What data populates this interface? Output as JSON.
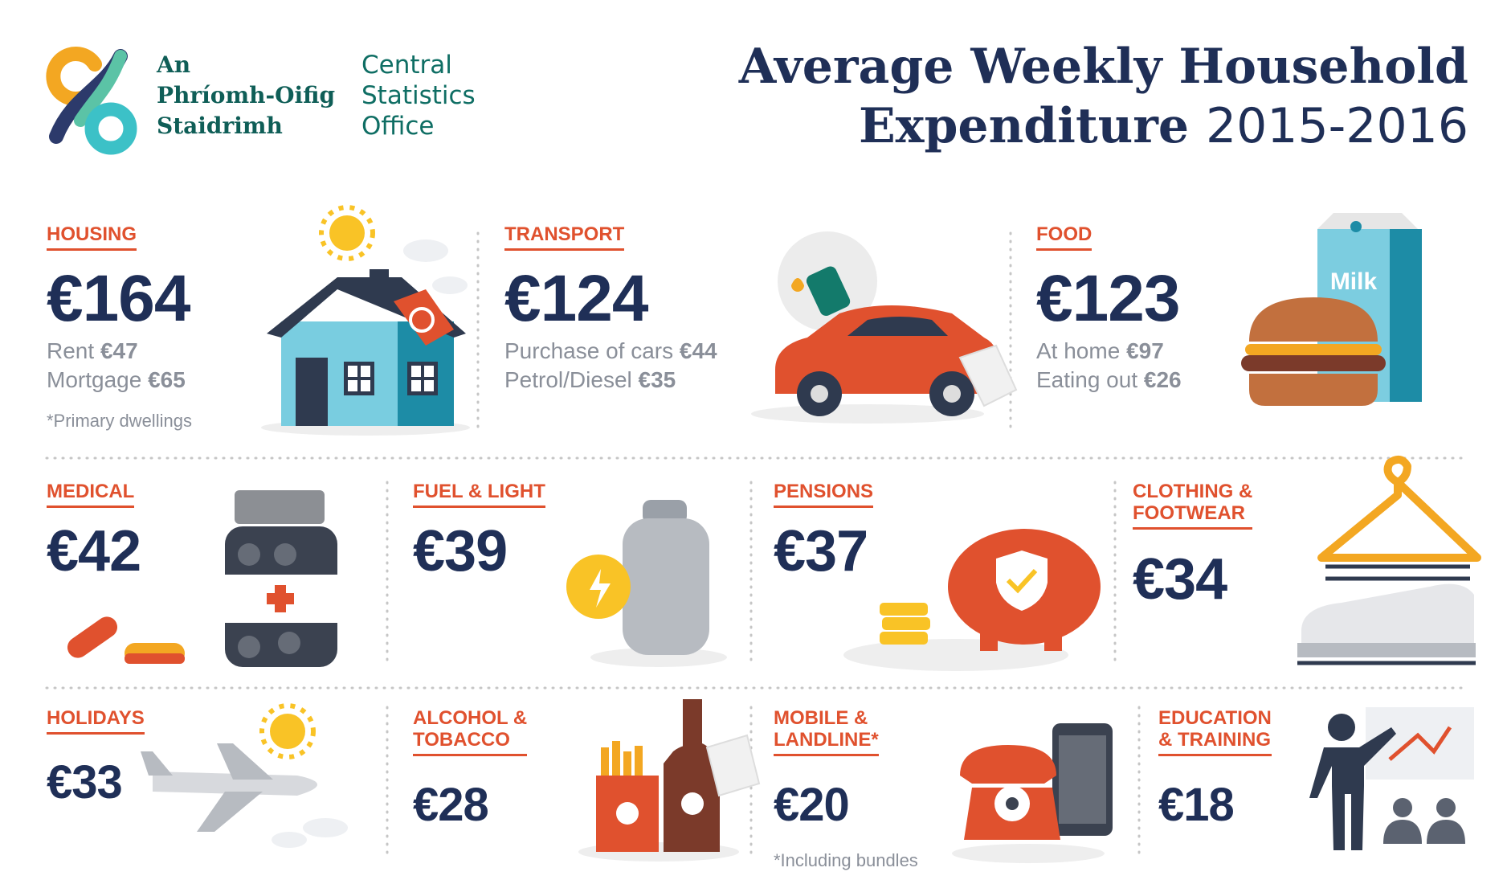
{
  "logo": {
    "irish": [
      "An",
      "Phríomh-Oifig",
      "Staidrimh"
    ],
    "english": [
      "Central",
      "Statistics",
      "Office"
    ]
  },
  "header": {
    "title_line1": "Average Weekly Household",
    "title_line2": "Expenditure",
    "years": "2015-2016"
  },
  "sections": [
    {
      "label": [
        "HOUSING"
      ],
      "amount": "€164",
      "details": [
        {
          "label": "Rent",
          "amount": "€47"
        },
        {
          "label": "Mortgage",
          "amount": "€65"
        }
      ],
      "note": "*Primary dwellings"
    },
    {
      "label": [
        "TRANSPORT"
      ],
      "amount": "€124",
      "details": [
        {
          "label": "Purchase of cars",
          "amount": "€44"
        },
        {
          "label": "Petrol/Diesel",
          "amount": "€35"
        }
      ]
    },
    {
      "label": [
        "FOOD"
      ],
      "amount": "€123",
      "details": [
        {
          "label": "At home",
          "amount": "€97"
        },
        {
          "label": "Eating out",
          "amount": "€26"
        }
      ],
      "icon_text": "Milk"
    },
    {
      "label": [
        "MEDICAL"
      ],
      "amount": "€42"
    },
    {
      "label": [
        "FUEL & LIGHT"
      ],
      "amount": "€39"
    },
    {
      "label": [
        "PENSIONS"
      ],
      "amount": "€37"
    },
    {
      "label": [
        "CLOTHING &",
        "FOOTWEAR"
      ],
      "amount": "€34"
    },
    {
      "label": [
        "HOLIDAYS"
      ],
      "amount": "€33"
    },
    {
      "label": [
        "ALCOHOL &",
        "TOBACCO"
      ],
      "amount": "€28"
    },
    {
      "label": [
        "MOBILE &",
        "LANDLINE*"
      ],
      "amount": "€20",
      "note": "*Including bundles"
    },
    {
      "label": [
        "EDUCATION",
        "& TRAINING"
      ],
      "amount": "€18"
    }
  ]
}
